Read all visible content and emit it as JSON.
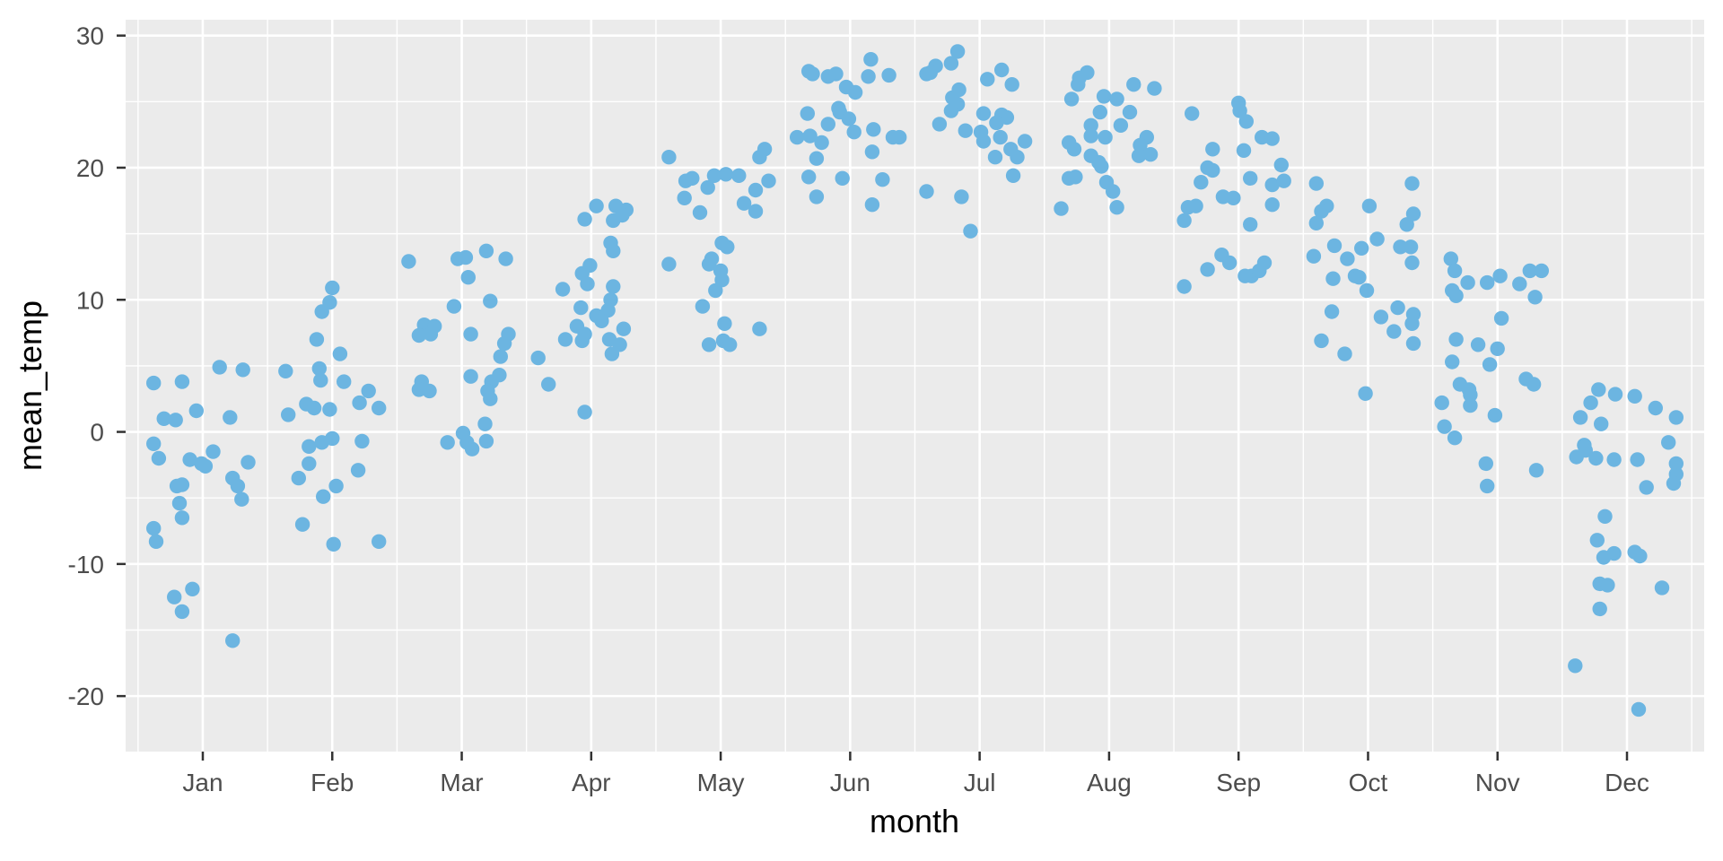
{
  "chart_data": {
    "type": "scatter",
    "title": "",
    "xlabel": "month",
    "ylabel": "mean_temp",
    "legend": "none",
    "grid": true,
    "panel_bg": "#EBEBEB",
    "grid_color": "#FFFFFF",
    "point_color": "#6CB5E1",
    "tick_color": "#333333",
    "tick_label_color": "#4D4D4D",
    "axis_title_color": "#000000",
    "xlim": [
      0.404,
      12.596
    ],
    "ylim": [
      -24.2,
      31.2
    ],
    "x_ticks": [
      1,
      2,
      3,
      4,
      5,
      6,
      7,
      8,
      9,
      10,
      11,
      12
    ],
    "x_tick_labels": [
      "Jan",
      "Feb",
      "Mar",
      "Apr",
      "May",
      "Jun",
      "Jul",
      "Aug",
      "Sep",
      "Oct",
      "Nov",
      "Dec"
    ],
    "x_minor": [
      0.5,
      1.5,
      2.5,
      3.5,
      4.5,
      5.5,
      6.5,
      7.5,
      8.5,
      9.5,
      10.5,
      11.5,
      12.5
    ],
    "y_ticks": [
      -20,
      -10,
      0,
      10,
      20,
      30
    ],
    "y_tick_labels": [
      "-20",
      "-10",
      "0",
      "10",
      "20",
      "30"
    ],
    "y_minor": [
      -15,
      -5,
      5,
      15,
      25
    ],
    "points": [
      [
        1.13,
        4.9
      ],
      [
        1.31,
        4.7
      ],
      [
        0.62,
        3.7
      ],
      [
        0.84,
        3.8
      ],
      [
        0.7,
        1.0
      ],
      [
        0.79,
        0.9
      ],
      [
        0.95,
        1.6
      ],
      [
        1.21,
        1.1
      ],
      [
        0.62,
        -0.9
      ],
      [
        0.66,
        -2.0
      ],
      [
        0.9,
        -2.1
      ],
      [
        0.99,
        -2.4
      ],
      [
        1.08,
        -1.5
      ],
      [
        1.02,
        -2.6
      ],
      [
        1.35,
        -2.3
      ],
      [
        1.23,
        -3.5
      ],
      [
        1.27,
        -4.1
      ],
      [
        1.3,
        -5.1
      ],
      [
        0.8,
        -4.1
      ],
      [
        0.84,
        -4.0
      ],
      [
        0.82,
        -5.4
      ],
      [
        0.84,
        -6.5
      ],
      [
        0.62,
        -7.3
      ],
      [
        0.64,
        -8.3
      ],
      [
        0.92,
        -11.9
      ],
      [
        0.78,
        -12.5
      ],
      [
        0.84,
        -13.6
      ],
      [
        1.23,
        -15.8
      ],
      [
        2.0,
        10.9
      ],
      [
        1.98,
        9.8
      ],
      [
        1.92,
        9.1
      ],
      [
        1.88,
        7.0
      ],
      [
        2.06,
        5.9
      ],
      [
        1.64,
        4.6
      ],
      [
        1.9,
        4.8
      ],
      [
        1.91,
        3.9
      ],
      [
        2.09,
        3.8
      ],
      [
        2.28,
        3.1
      ],
      [
        2.21,
        2.2
      ],
      [
        2.36,
        1.8
      ],
      [
        1.8,
        2.1
      ],
      [
        1.86,
        1.8
      ],
      [
        1.98,
        1.7
      ],
      [
        1.66,
        1.3
      ],
      [
        2.0,
        -0.5
      ],
      [
        1.92,
        -0.8
      ],
      [
        1.82,
        -1.1
      ],
      [
        2.23,
        -0.7
      ],
      [
        1.82,
        -2.4
      ],
      [
        1.74,
        -3.5
      ],
      [
        2.2,
        -2.9
      ],
      [
        2.03,
        -4.1
      ],
      [
        1.93,
        -4.9
      ],
      [
        1.77,
        -7.0
      ],
      [
        2.01,
        -8.5
      ],
      [
        2.36,
        -8.3
      ],
      [
        2.59,
        12.9
      ],
      [
        2.97,
        13.1
      ],
      [
        3.03,
        13.2
      ],
      [
        3.19,
        13.7
      ],
      [
        3.34,
        13.1
      ],
      [
        3.05,
        11.7
      ],
      [
        2.94,
        9.5
      ],
      [
        3.22,
        9.9
      ],
      [
        2.71,
        8.1
      ],
      [
        2.79,
        8.0
      ],
      [
        2.67,
        7.3
      ],
      [
        2.76,
        7.4
      ],
      [
        3.07,
        7.4
      ],
      [
        3.36,
        7.4
      ],
      [
        3.33,
        6.7
      ],
      [
        3.3,
        5.7
      ],
      [
        3.07,
        4.2
      ],
      [
        3.29,
        4.3
      ],
      [
        3.23,
        3.8
      ],
      [
        2.69,
        3.8
      ],
      [
        2.67,
        3.2
      ],
      [
        2.75,
        3.1
      ],
      [
        3.2,
        3.1
      ],
      [
        3.22,
        2.5
      ],
      [
        3.18,
        0.6
      ],
      [
        3.01,
        -0.1
      ],
      [
        2.89,
        -0.8
      ],
      [
        3.04,
        -0.8
      ],
      [
        3.08,
        -1.3
      ],
      [
        3.19,
        -0.7
      ],
      [
        4.04,
        17.1
      ],
      [
        4.19,
        17.1
      ],
      [
        4.27,
        16.8
      ],
      [
        4.17,
        16.0
      ],
      [
        4.24,
        16.4
      ],
      [
        3.95,
        16.1
      ],
      [
        4.15,
        14.3
      ],
      [
        4.17,
        13.7
      ],
      [
        3.99,
        12.6
      ],
      [
        3.93,
        12.0
      ],
      [
        3.97,
        11.2
      ],
      [
        3.78,
        10.8
      ],
      [
        4.17,
        11.0
      ],
      [
        4.15,
        10.0
      ],
      [
        3.92,
        9.4
      ],
      [
        4.13,
        9.2
      ],
      [
        4.04,
        8.8
      ],
      [
        4.08,
        8.4
      ],
      [
        3.89,
        8.0
      ],
      [
        3.95,
        7.4
      ],
      [
        3.8,
        7.0
      ],
      [
        3.93,
        6.9
      ],
      [
        4.25,
        7.8
      ],
      [
        4.14,
        7.0
      ],
      [
        4.22,
        6.6
      ],
      [
        4.16,
        5.9
      ],
      [
        3.59,
        5.6
      ],
      [
        3.67,
        3.6
      ],
      [
        3.95,
        1.5
      ],
      [
        5.34,
        21.4
      ],
      [
        5.3,
        20.8
      ],
      [
        4.6,
        20.8
      ],
      [
        4.73,
        19.0
      ],
      [
        4.78,
        19.2
      ],
      [
        4.95,
        19.4
      ],
      [
        5.04,
        19.5
      ],
      [
        5.14,
        19.4
      ],
      [
        5.37,
        19.0
      ],
      [
        4.9,
        18.5
      ],
      [
        5.27,
        18.3
      ],
      [
        4.72,
        17.7
      ],
      [
        5.18,
        17.3
      ],
      [
        5.27,
        16.7
      ],
      [
        4.84,
        16.6
      ],
      [
        5.01,
        14.3
      ],
      [
        5.05,
        14.0
      ],
      [
        4.93,
        13.1
      ],
      [
        4.91,
        12.7
      ],
      [
        4.6,
        12.7
      ],
      [
        5.0,
        12.2
      ],
      [
        5.01,
        11.5
      ],
      [
        4.96,
        10.7
      ],
      [
        4.86,
        9.5
      ],
      [
        5.03,
        8.2
      ],
      [
        5.3,
        7.8
      ],
      [
        4.91,
        6.6
      ],
      [
        5.02,
        6.9
      ],
      [
        5.07,
        6.6
      ],
      [
        6.16,
        28.2
      ],
      [
        5.68,
        27.3
      ],
      [
        5.71,
        27.1
      ],
      [
        5.83,
        26.9
      ],
      [
        5.89,
        27.1
      ],
      [
        6.14,
        26.9
      ],
      [
        6.3,
        27.0
      ],
      [
        5.97,
        26.1
      ],
      [
        6.04,
        25.7
      ],
      [
        5.67,
        24.1
      ],
      [
        5.91,
        24.5
      ],
      [
        5.92,
        24.2
      ],
      [
        5.83,
        23.3
      ],
      [
        5.99,
        23.7
      ],
      [
        5.59,
        22.3
      ],
      [
        5.69,
        22.4
      ],
      [
        6.03,
        22.7
      ],
      [
        6.18,
        22.9
      ],
      [
        6.33,
        22.3
      ],
      [
        6.38,
        22.3
      ],
      [
        5.78,
        21.9
      ],
      [
        6.17,
        21.2
      ],
      [
        5.74,
        20.7
      ],
      [
        5.68,
        19.3
      ],
      [
        5.94,
        19.2
      ],
      [
        6.25,
        19.1
      ],
      [
        5.74,
        17.8
      ],
      [
        6.17,
        17.2
      ],
      [
        6.83,
        28.8
      ],
      [
        6.78,
        27.9
      ],
      [
        6.66,
        27.7
      ],
      [
        6.59,
        27.1
      ],
      [
        6.62,
        27.2
      ],
      [
        7.06,
        26.7
      ],
      [
        7.17,
        27.4
      ],
      [
        7.25,
        26.3
      ],
      [
        6.84,
        25.9
      ],
      [
        6.79,
        25.3
      ],
      [
        6.83,
        24.8
      ],
      [
        6.78,
        24.3
      ],
      [
        7.03,
        24.1
      ],
      [
        7.17,
        24.0
      ],
      [
        7.21,
        23.8
      ],
      [
        7.13,
        23.4
      ],
      [
        6.69,
        23.3
      ],
      [
        6.89,
        22.8
      ],
      [
        7.01,
        22.7
      ],
      [
        7.16,
        22.3
      ],
      [
        7.03,
        22.0
      ],
      [
        7.35,
        22.0
      ],
      [
        7.24,
        21.4
      ],
      [
        7.29,
        20.8
      ],
      [
        7.12,
        20.8
      ],
      [
        7.26,
        19.4
      ],
      [
        6.59,
        18.2
      ],
      [
        6.86,
        17.8
      ],
      [
        6.93,
        15.2
      ],
      [
        7.83,
        27.2
      ],
      [
        7.77,
        26.8
      ],
      [
        7.76,
        26.3
      ],
      [
        8.19,
        26.3
      ],
      [
        8.35,
        26.0
      ],
      [
        7.71,
        25.2
      ],
      [
        7.96,
        25.4
      ],
      [
        8.06,
        25.2
      ],
      [
        7.93,
        24.2
      ],
      [
        8.16,
        24.2
      ],
      [
        7.86,
        23.2
      ],
      [
        8.09,
        23.2
      ],
      [
        7.86,
        22.4
      ],
      [
        7.97,
        22.3
      ],
      [
        8.29,
        22.3
      ],
      [
        7.69,
        21.9
      ],
      [
        7.73,
        21.4
      ],
      [
        8.24,
        21.7
      ],
      [
        8.23,
        20.9
      ],
      [
        8.32,
        21.0
      ],
      [
        7.86,
        20.9
      ],
      [
        7.92,
        20.4
      ],
      [
        7.94,
        20.1
      ],
      [
        7.69,
        19.2
      ],
      [
        7.74,
        19.3
      ],
      [
        7.98,
        18.9
      ],
      [
        8.03,
        18.2
      ],
      [
        8.06,
        17.0
      ],
      [
        7.63,
        16.9
      ],
      [
        9.0,
        24.9
      ],
      [
        8.64,
        24.1
      ],
      [
        9.01,
        24.3
      ],
      [
        9.06,
        23.5
      ],
      [
        9.18,
        22.3
      ],
      [
        9.26,
        22.2
      ],
      [
        8.8,
        21.4
      ],
      [
        9.04,
        21.3
      ],
      [
        9.33,
        20.2
      ],
      [
        8.76,
        20.0
      ],
      [
        8.8,
        19.8
      ],
      [
        8.71,
        18.9
      ],
      [
        9.09,
        19.2
      ],
      [
        9.26,
        18.7
      ],
      [
        9.35,
        19.0
      ],
      [
        8.88,
        17.8
      ],
      [
        8.96,
        17.7
      ],
      [
        9.26,
        17.2
      ],
      [
        8.61,
        17.0
      ],
      [
        8.67,
        17.1
      ],
      [
        8.58,
        16.0
      ],
      [
        9.09,
        15.7
      ],
      [
        8.87,
        13.4
      ],
      [
        8.93,
        12.8
      ],
      [
        8.76,
        12.3
      ],
      [
        9.2,
        12.8
      ],
      [
        9.1,
        11.8
      ],
      [
        9.16,
        12.2
      ],
      [
        9.05,
        11.8
      ],
      [
        8.58,
        11.0
      ],
      [
        9.6,
        18.8
      ],
      [
        10.34,
        18.8
      ],
      [
        10.01,
        17.1
      ],
      [
        9.68,
        17.1
      ],
      [
        9.64,
        16.7
      ],
      [
        10.35,
        16.5
      ],
      [
        9.6,
        15.8
      ],
      [
        10.3,
        15.7
      ],
      [
        10.07,
        14.6
      ],
      [
        9.74,
        14.1
      ],
      [
        9.95,
        13.9
      ],
      [
        10.25,
        14.0
      ],
      [
        10.33,
        14.0
      ],
      [
        9.58,
        13.3
      ],
      [
        9.84,
        13.1
      ],
      [
        10.34,
        12.8
      ],
      [
        9.73,
        11.6
      ],
      [
        9.9,
        11.8
      ],
      [
        9.93,
        11.7
      ],
      [
        9.99,
        10.7
      ],
      [
        9.72,
        9.1
      ],
      [
        10.23,
        9.4
      ],
      [
        10.1,
        8.7
      ],
      [
        10.35,
        8.9
      ],
      [
        10.34,
        8.2
      ],
      [
        10.2,
        7.6
      ],
      [
        9.64,
        6.9
      ],
      [
        10.35,
        6.7
      ],
      [
        9.82,
        5.9
      ],
      [
        9.98,
        2.9
      ],
      [
        10.64,
        13.1
      ],
      [
        10.67,
        12.2
      ],
      [
        10.77,
        11.3
      ],
      [
        10.65,
        10.7
      ],
      [
        10.68,
        10.3
      ],
      [
        10.92,
        11.3
      ],
      [
        11.02,
        11.8
      ],
      [
        11.17,
        11.2
      ],
      [
        11.25,
        12.2
      ],
      [
        11.34,
        12.2
      ],
      [
        11.29,
        10.2
      ],
      [
        11.03,
        8.6
      ],
      [
        10.68,
        7.0
      ],
      [
        10.85,
        6.6
      ],
      [
        11.0,
        6.3
      ],
      [
        10.65,
        5.3
      ],
      [
        10.94,
        5.1
      ],
      [
        11.22,
        4.0
      ],
      [
        11.28,
        3.6
      ],
      [
        10.71,
        3.6
      ],
      [
        10.78,
        3.2
      ],
      [
        10.79,
        2.8
      ],
      [
        10.57,
        2.2
      ],
      [
        10.79,
        2.0
      ],
      [
        10.98,
        1.25
      ],
      [
        10.59,
        0.4
      ],
      [
        10.67,
        -0.45
      ],
      [
        10.91,
        -2.4
      ],
      [
        11.3,
        -2.9
      ],
      [
        10.92,
        -4.1
      ],
      [
        11.78,
        3.2
      ],
      [
        11.91,
        2.85
      ],
      [
        12.06,
        2.7
      ],
      [
        11.72,
        2.2
      ],
      [
        12.22,
        1.8
      ],
      [
        11.64,
        1.1
      ],
      [
        11.8,
        0.6
      ],
      [
        12.38,
        1.1
      ],
      [
        11.67,
        -1.0
      ],
      [
        11.68,
        -1.4
      ],
      [
        11.61,
        -1.9
      ],
      [
        11.76,
        -2.0
      ],
      [
        11.9,
        -2.1
      ],
      [
        12.08,
        -2.1
      ],
      [
        12.32,
        -0.8
      ],
      [
        12.38,
        -2.4
      ],
      [
        12.38,
        -3.2
      ],
      [
        12.36,
        -3.9
      ],
      [
        12.15,
        -4.2
      ],
      [
        11.83,
        -6.4
      ],
      [
        11.77,
        -8.2
      ],
      [
        11.82,
        -9.5
      ],
      [
        11.9,
        -9.2
      ],
      [
        12.06,
        -9.1
      ],
      [
        12.1,
        -9.4
      ],
      [
        11.79,
        -11.5
      ],
      [
        11.85,
        -11.6
      ],
      [
        12.27,
        -11.8
      ],
      [
        11.79,
        -13.4
      ],
      [
        11.6,
        -17.7
      ],
      [
        12.09,
        -21.0
      ]
    ]
  }
}
